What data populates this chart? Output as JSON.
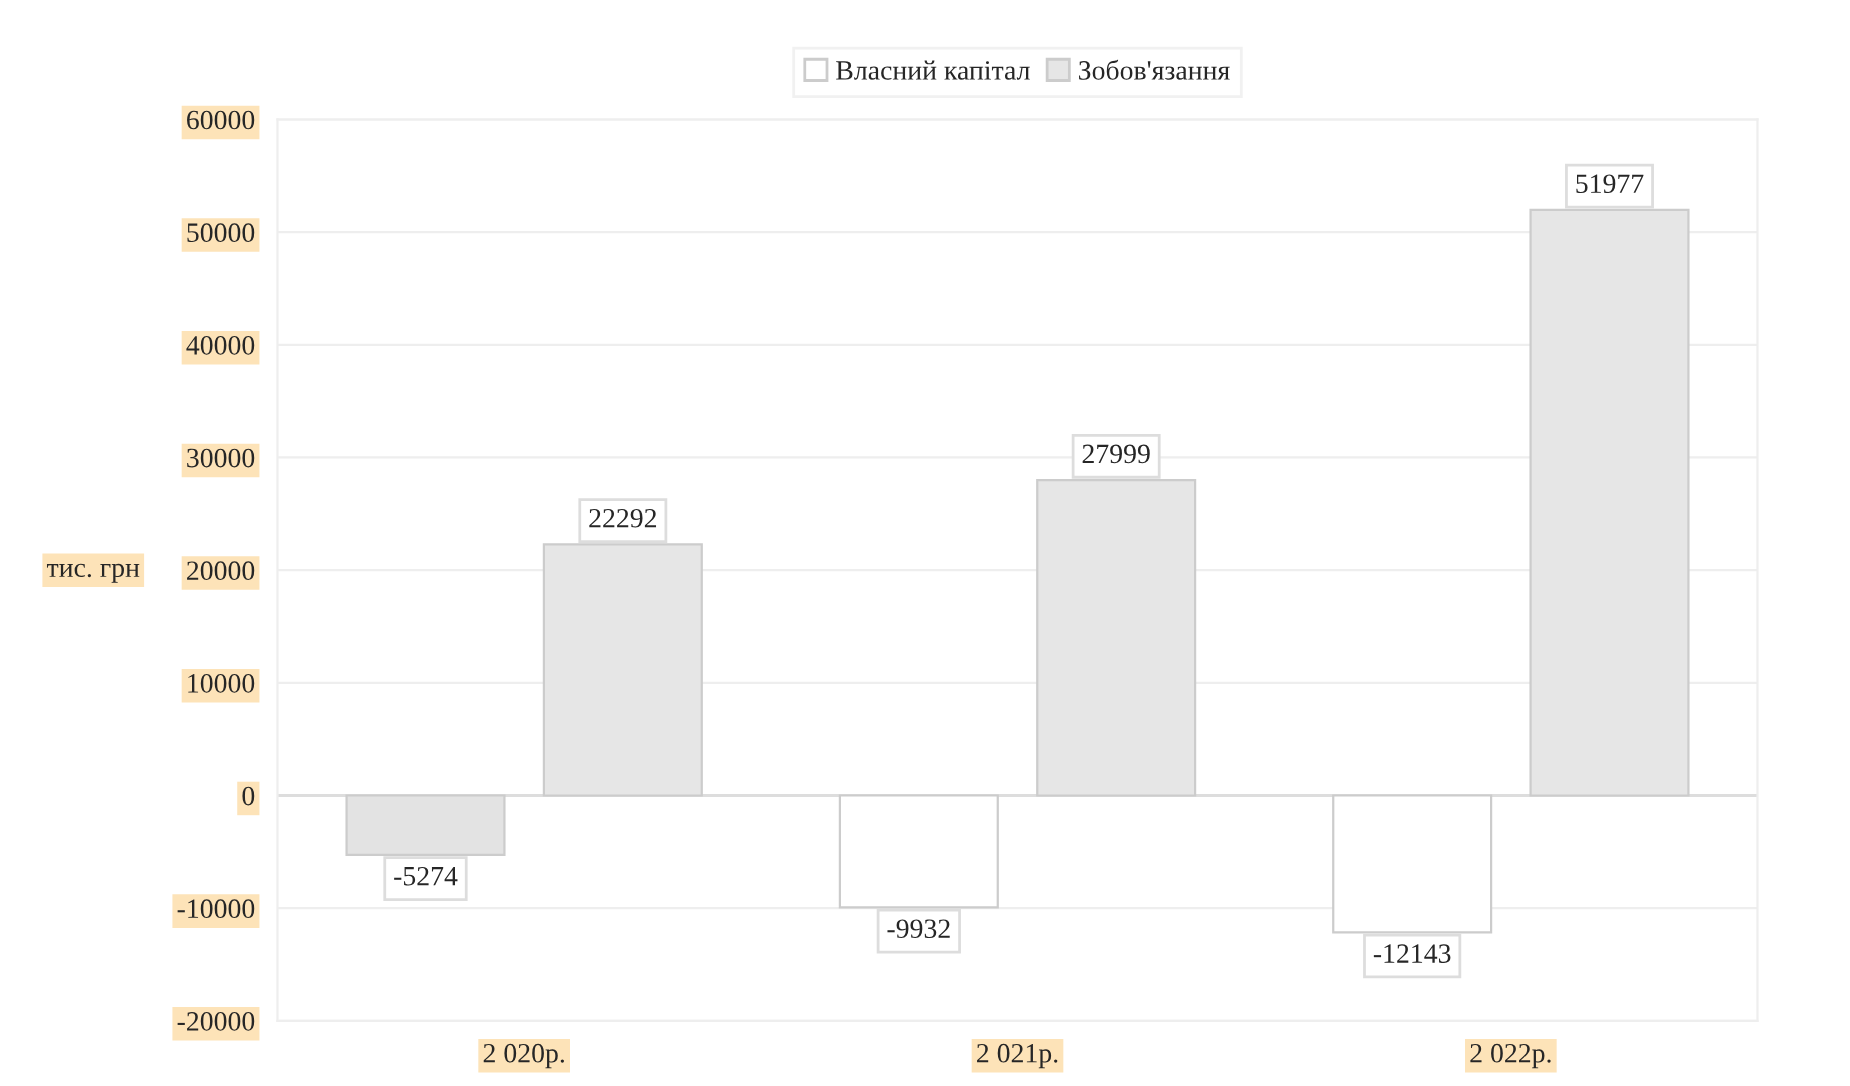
{
  "chart_data": {
    "type": "bar",
    "categories": [
      "2 020р.",
      "2 021р.",
      "2 022р."
    ],
    "series": [
      {
        "name": "Власний капітал",
        "color": "#ffffff",
        "colors": [
          "#e3e3e3",
          "#ffffff",
          "#ffffff"
        ],
        "values": [
          -5274,
          -9932,
          -12143
        ]
      },
      {
        "name": "Зобов'язання",
        "color": "#e6e6e6",
        "values": [
          22292,
          27999,
          51977
        ]
      }
    ],
    "ylabel": "тис. грн",
    "ylim": [
      -20000,
      60000
    ],
    "yticks": [
      -20000,
      -10000,
      0,
      10000,
      20000,
      30000,
      40000,
      50000,
      60000
    ],
    "grid": "y",
    "legend": "top",
    "data_labels": true
  }
}
